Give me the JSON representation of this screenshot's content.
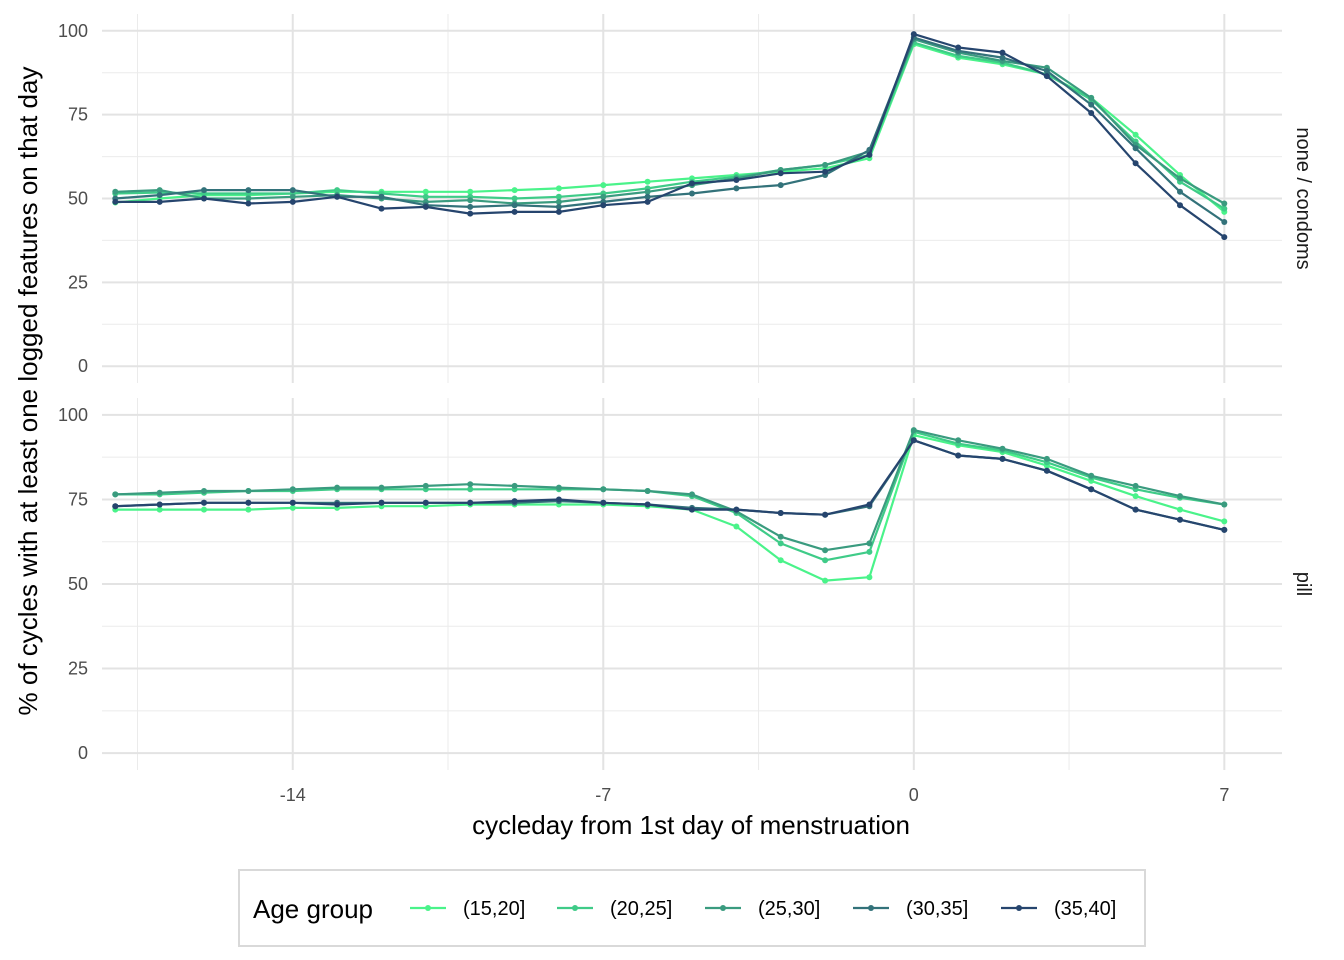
{
  "chart_data": {
    "type": "line",
    "xlabel": "cycleday from 1st day of menstruation",
    "ylabel": "% of cycles with at least one logged features on that day",
    "xlim": [
      -18.3,
      8.3
    ],
    "ylim": [
      -5,
      105
    ],
    "x_ticks": [
      -14,
      -7,
      0,
      7
    ],
    "x_tick_labels": [
      "-14",
      "-7",
      "0",
      "7"
    ],
    "x_minor": [
      -17.5,
      -10.5,
      -3.5,
      3.5
    ],
    "y_ticks": [
      0,
      25,
      50,
      75,
      100
    ],
    "y_tick_labels": [
      "0",
      "25",
      "50",
      "75",
      "100"
    ],
    "y_minor": [
      12.5,
      37.5,
      62.5,
      87.5
    ],
    "grid": true,
    "legend": {
      "title": "Age group",
      "position": "bottom",
      "frame_color": "#d9d9d9"
    },
    "x": [
      -18,
      -17,
      -16,
      -15,
      -14,
      -13,
      -12,
      -11,
      -10,
      -9,
      -8,
      -7,
      -6,
      -5,
      -4,
      -3,
      -2,
      -1,
      0,
      1,
      2,
      3,
      4,
      5,
      6,
      7
    ],
    "series_meta": [
      {
        "name": "(15,20]",
        "color": "#4AF38A"
      },
      {
        "name": "(20,25]",
        "color": "#3FCB88"
      },
      {
        "name": "(25,30]",
        "color": "#3A9B7F"
      },
      {
        "name": "(30,35]",
        "color": "#33727A"
      },
      {
        "name": "(35,40]",
        "color": "#26456E"
      }
    ],
    "panels": [
      {
        "strip": "none / condoms",
        "series": [
          {
            "name": "(15,20]",
            "values": [
              48.8,
              50.0,
              51.0,
              51.0,
              51.5,
              52.0,
              52.0,
              52.0,
              52.0,
              52.5,
              53.0,
              54.0,
              55.0,
              56.0,
              57.0,
              58.0,
              59.0,
              62.0,
              96.0,
              92.0,
              90.0,
              87.0,
              80.0,
              69.0,
              57.0,
              46.0
            ]
          },
          {
            "name": "(20,25]",
            "values": [
              51.5,
              51.8,
              51.5,
              51.5,
              51.5,
              52.5,
              51.5,
              50.5,
              50.5,
              50.0,
              50.5,
              51.5,
              53.0,
              55.0,
              56.5,
              58.5,
              60.0,
              63.0,
              96.5,
              92.5,
              90.5,
              87.0,
              79.5,
              67.0,
              55.0,
              47.0
            ]
          },
          {
            "name": "(25,30]",
            "values": [
              52.0,
              52.5,
              50.0,
              50.0,
              50.5,
              51.0,
              50.0,
              49.0,
              49.5,
              48.5,
              49.0,
              50.5,
              52.0,
              54.0,
              56.0,
              58.5,
              60.0,
              64.0,
              97.5,
              93.5,
              91.0,
              89.0,
              80.0,
              66.0,
              56.0,
              48.5
            ]
          },
          {
            "name": "(30,35]",
            "values": [
              50.0,
              51.0,
              52.5,
              52.5,
              52.5,
              50.5,
              50.5,
              48.0,
              47.5,
              48.0,
              47.5,
              49.0,
              50.5,
              51.5,
              53.0,
              54.0,
              57.0,
              64.5,
              98.0,
              94.0,
              92.0,
              88.0,
              78.0,
              65.0,
              52.0,
              43.0
            ]
          },
          {
            "name": "(35,40]",
            "values": [
              49.0,
              49.0,
              50.0,
              48.5,
              49.0,
              50.5,
              47.0,
              47.5,
              45.5,
              46.0,
              46.0,
              48.0,
              49.0,
              54.5,
              55.5,
              57.5,
              58.0,
              63.0,
              99.0,
              95.0,
              93.5,
              86.5,
              75.5,
              60.5,
              48.0,
              38.5
            ]
          }
        ]
      },
      {
        "strip": "pill",
        "series": [
          {
            "name": "(15,20]",
            "values": [
              72.0,
              72.0,
              72.0,
              72.0,
              72.5,
              72.5,
              73.0,
              73.0,
              73.5,
              73.5,
              73.5,
              73.5,
              73.0,
              72.0,
              67.0,
              57.0,
              51.0,
              52.0,
              94.0,
              91.0,
              89.0,
              85.0,
              80.5,
              76.0,
              72.0,
              68.5
            ]
          },
          {
            "name": "(20,25]",
            "values": [
              76.5,
              76.5,
              77.0,
              77.5,
              77.5,
              78.0,
              78.0,
              78.0,
              78.0,
              78.0,
              78.0,
              78.0,
              77.5,
              76.0,
              71.0,
              62.0,
              57.0,
              59.5,
              95.0,
              91.5,
              89.5,
              86.0,
              81.5,
              78.0,
              75.5,
              73.5
            ]
          },
          {
            "name": "(25,30]",
            "values": [
              76.5,
              77.0,
              77.5,
              77.5,
              78.0,
              78.5,
              78.5,
              79.0,
              79.5,
              79.0,
              78.5,
              78.0,
              77.5,
              76.5,
              71.5,
              64.0,
              60.0,
              62.0,
              95.5,
              92.5,
              90.0,
              87.0,
              82.0,
              79.0,
              76.0,
              73.5
            ]
          },
          {
            "name": "(30,35]",
            "values": [
              73.0,
              73.5,
              74.0,
              74.0,
              74.0,
              74.0,
              74.0,
              74.0,
              74.0,
              74.0,
              74.5,
              74.0,
              73.5,
              72.5,
              72.0,
              71.0,
              70.5,
              73.0,
              92.5,
              88.0,
              87.0,
              83.5,
              78.0,
              72.0,
              69.0,
              66.0
            ]
          },
          {
            "name": "(35,40]",
            "values": [
              73.0,
              73.5,
              74.0,
              74.0,
              74.0,
              73.5,
              74.0,
              74.0,
              74.0,
              74.5,
              75.0,
              74.0,
              73.5,
              72.0,
              72.0,
              71.0,
              70.5,
              73.5,
              92.5,
              88.0,
              87.0,
              83.5,
              78.0,
              72.0,
              69.0,
              66.0
            ]
          }
        ]
      }
    ]
  }
}
